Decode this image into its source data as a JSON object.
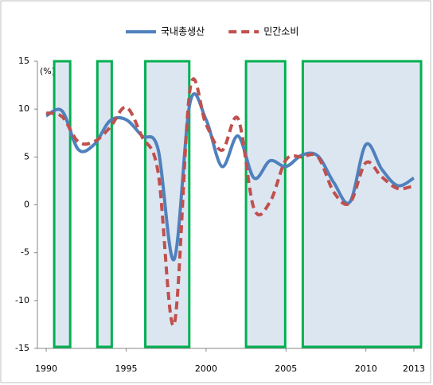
{
  "chart_data": {
    "type": "line",
    "unit_label": "(%)",
    "x": [
      1990,
      1991,
      1992,
      1993,
      1994,
      1995,
      1996,
      1997,
      1998,
      1999,
      2000,
      2001,
      2002,
      2003,
      2004,
      2005,
      2006,
      2007,
      2008,
      2009,
      2010,
      2011,
      2012,
      2013
    ],
    "series": [
      {
        "name": "국내총생산",
        "color": "#4f81bd",
        "dash": false,
        "values": [
          9.3,
          9.8,
          5.8,
          6.3,
          8.8,
          8.9,
          7.2,
          5.8,
          -5.7,
          10.7,
          8.9,
          4.0,
          7.2,
          2.8,
          4.6,
          4.0,
          5.2,
          5.1,
          2.3,
          0.3,
          6.3,
          3.7,
          2.0,
          2.8
        ]
      },
      {
        "name": "민간소비",
        "color": "#c0504d",
        "dash": true,
        "values": [
          9.6,
          9.2,
          6.6,
          6.6,
          8.1,
          10.2,
          7.1,
          3.4,
          -12.5,
          12.1,
          8.4,
          5.7,
          9.0,
          -0.4,
          0.3,
          4.7,
          5.0,
          5.0,
          1.3,
          0.2,
          4.4,
          2.9,
          1.7,
          2.0
        ]
      }
    ],
    "shaded_periods": [
      [
        1990.5,
        1991.5
      ],
      [
        1993.2,
        1994.1
      ],
      [
        1996.2,
        1998.95
      ],
      [
        2002.5,
        2004.95
      ],
      [
        2006.05,
        2013.45
      ]
    ],
    "shade_color": "#dce6f1",
    "shade_border": "#00b050",
    "xlim": [
      1989.45,
      2013.5
    ],
    "xticks": [
      1990,
      1995,
      2000,
      2005,
      2010,
      2013
    ],
    "ylim": [
      -15,
      15
    ],
    "yticks": [
      15,
      10,
      5,
      0,
      -5,
      -10,
      -15
    ],
    "grid": false
  }
}
